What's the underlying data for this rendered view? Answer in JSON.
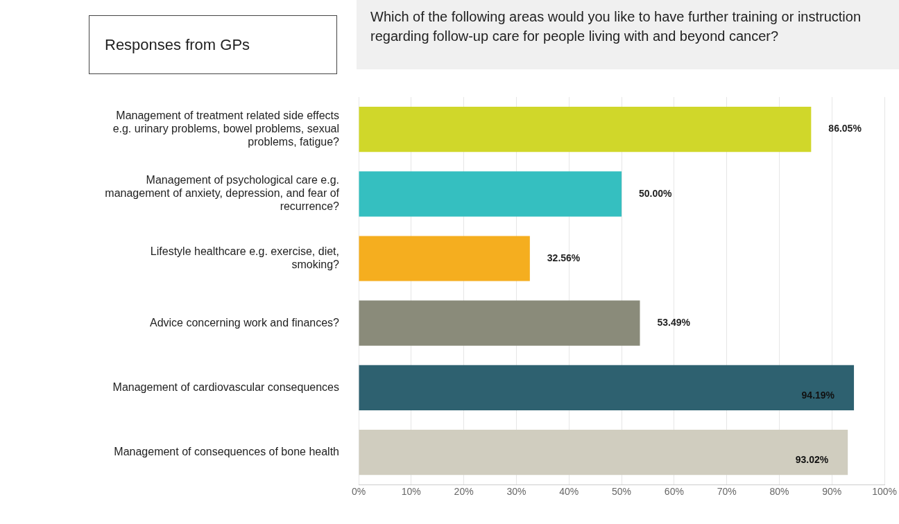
{
  "chart_data": {
    "type": "bar",
    "orientation": "horizontal",
    "title": "Which of the following areas would you like to have further training or instruction regarding follow-up care for people living with and beyond cancer?",
    "annotations": [
      "Responses from GPs"
    ],
    "categories": [
      "Management of treatment related side effects e.g. urinary problems, bowel problems, sexual problems, fatigue?",
      "Management of psychological care e.g. management of anxiety, depression, and fear of recurrence?",
      "Lifestyle healthcare e.g. exercise, diet, smoking?",
      "Advice concerning work and finances?",
      "Management of cardiovascular consequences",
      "Management of consequences of bone health"
    ],
    "values": [
      86.05,
      50.0,
      32.56,
      53.49,
      94.19,
      93.02
    ],
    "value_labels": [
      "86.05%",
      "50.00%",
      "32.56%",
      "53.49%",
      "94.19%",
      "93.02%"
    ],
    "colors": [
      "#d0d72a",
      "#35bfc0",
      "#f5ae1f",
      "#8a8b7a",
      "#2e6170",
      "#d0cdbf"
    ],
    "xlim": [
      0,
      100
    ],
    "xticks": [
      {
        "value": 0,
        "label": "0%"
      },
      {
        "value": 10,
        "label": "10%"
      },
      {
        "value": 20,
        "label": "20%"
      },
      {
        "value": 30,
        "label": "30%"
      },
      {
        "value": 40,
        "label": "40%"
      },
      {
        "value": 50,
        "label": "50%"
      },
      {
        "value": 60,
        "label": "60%"
      },
      {
        "value": 70,
        "label": "70%"
      },
      {
        "value": 80,
        "label": "80%"
      },
      {
        "value": 90,
        "label": "90%"
      },
      {
        "value": 100,
        "label": "100%"
      }
    ],
    "grid": "x",
    "legend": false
  }
}
